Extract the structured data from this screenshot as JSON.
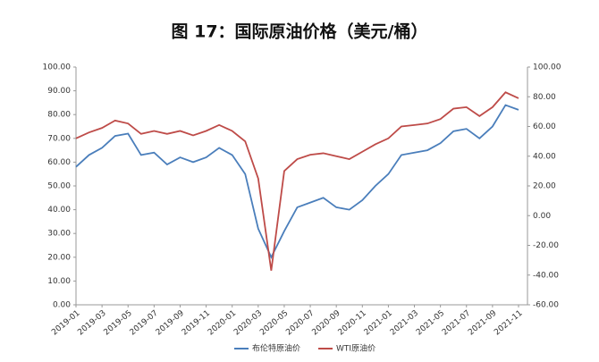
{
  "chart_data": {
    "type": "line",
    "title": "图 17：国际原油价格（美元/桶）",
    "x": [
      "2019-01",
      "2019-02",
      "2019-03",
      "2019-04",
      "2019-05",
      "2019-06",
      "2019-07",
      "2019-08",
      "2019-09",
      "2019-10",
      "2019-11",
      "2019-12",
      "2020-01",
      "2020-02",
      "2020-03",
      "2020-04",
      "2020-05",
      "2020-06",
      "2020-07",
      "2020-08",
      "2020-09",
      "2020-10",
      "2020-11",
      "2020-12",
      "2021-01",
      "2021-02",
      "2021-03",
      "2021-04",
      "2021-05",
      "2021-06",
      "2021-07",
      "2021-08",
      "2021-09",
      "2021-10",
      "2021-11"
    ],
    "series": [
      {
        "name": "布伦特原油价",
        "color": "#4a7ebb",
        "values": [
          58,
          63,
          66,
          71,
          72,
          63,
          64,
          59,
          62,
          60,
          62,
          66,
          63,
          55,
          32,
          20,
          31,
          41,
          43,
          45,
          41,
          40,
          44,
          50,
          55,
          63,
          64,
          65,
          68,
          73,
          74,
          70,
          75,
          84,
          82
        ]
      },
      {
        "name": "WTI原油价",
        "color": "#be4b48",
        "axis": "y2",
        "values": [
          52,
          56,
          59,
          64,
          62,
          55,
          57,
          55,
          57,
          54,
          57,
          61,
          57,
          50,
          25,
          -37,
          30,
          38,
          41,
          42,
          40,
          38,
          43,
          48,
          52,
          60,
          61,
          62,
          65,
          72,
          73,
          67,
          73,
          83,
          79
        ]
      }
    ],
    "ylim": [
      0,
      100
    ],
    "yticks": [
      {
        "value": 0,
        "label": "0.00"
      },
      {
        "value": 10,
        "label": "10.00"
      },
      {
        "value": 20,
        "label": "20.00"
      },
      {
        "value": 30,
        "label": "30.00"
      },
      {
        "value": 40,
        "label": "40.00"
      },
      {
        "value": 50,
        "label": "50.00"
      },
      {
        "value": 60,
        "label": "60.00"
      },
      {
        "value": 70,
        "label": "70.00"
      },
      {
        "value": 80,
        "label": "80.00"
      },
      {
        "value": 90,
        "label": "90.00"
      },
      {
        "value": 100,
        "label": "100.00"
      }
    ],
    "y2lim": [
      -60,
      100
    ],
    "y2ticks": [
      {
        "value": -60,
        "label": "-60.00"
      },
      {
        "value": -40,
        "label": "-40.00"
      },
      {
        "value": -20,
        "label": "-20.00"
      },
      {
        "value": 0,
        "label": "0.00"
      },
      {
        "value": 20,
        "label": "20.00"
      },
      {
        "value": 40,
        "label": "40.00"
      },
      {
        "value": 60,
        "label": "60.00"
      },
      {
        "value": 80,
        "label": "80.00"
      },
      {
        "value": 100,
        "label": "100.00"
      }
    ],
    "grid": false
  }
}
